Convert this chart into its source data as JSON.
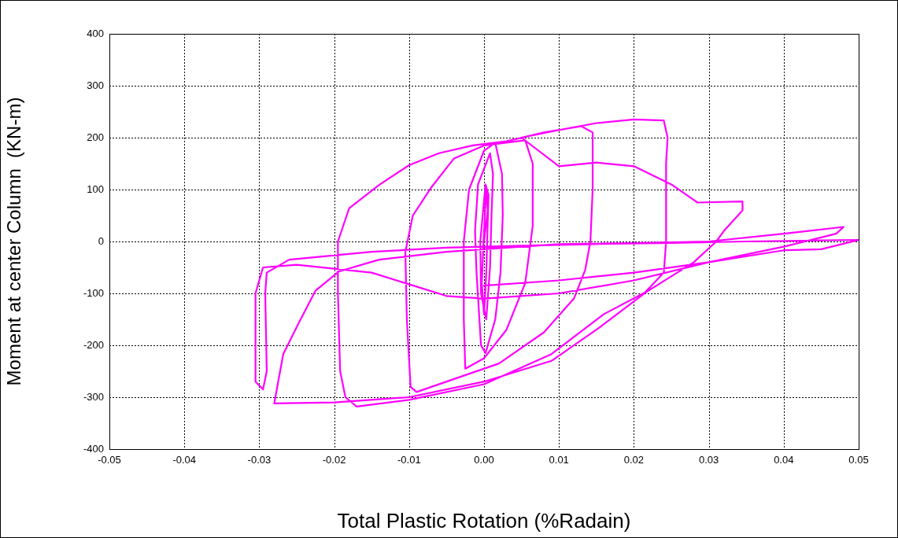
{
  "chart_data": {
    "type": "line",
    "xlabel": "Total Plastic Rotation (%Radain)",
    "ylabel": "Moment at center Column  (KN-m)",
    "xlim": [
      -0.05,
      0.05
    ],
    "xticks": [
      -0.05,
      -0.04,
      -0.03,
      -0.02,
      -0.01,
      {
        "value": 0,
        "label": "0.00"
      },
      0.01,
      0.02,
      0.03,
      0.04,
      0.05
    ],
    "ylim": [
      -400,
      400
    ],
    "yticks": [
      -400,
      -300,
      -200,
      -100,
      0,
      100,
      200,
      300,
      400
    ],
    "grid": true,
    "series": [
      {
        "color": "#ff00ff",
        "x": [
          0,
          0.0005,
          0.0003,
          0,
          -0.0003,
          0,
          0.0003,
          0.0006,
          0.0002,
          -0.0005,
          -0.0004,
          0.0003,
          0.0008,
          0.001,
          0.0012,
          0.0008,
          -0.0008,
          -0.0012,
          -0.001,
          -0.0004,
          0.0002,
          0.0015,
          0.0022,
          0.0025,
          0.0024,
          0.0015,
          0,
          -0.002,
          -0.0027,
          -0.0027,
          -0.0025,
          0,
          0.003,
          0.0055,
          0.0065,
          0.0065,
          0.0055,
          0,
          -0.004,
          -0.007,
          -0.0095,
          -0.0105,
          -0.0103,
          -0.0098,
          -0.009,
          -0.004,
          0.002,
          0.008,
          0.012,
          0.0135,
          0.0142,
          0.0145,
          0.0145,
          0.013,
          0.008,
          0.003,
          -0.0015,
          -0.006,
          -0.01,
          -0.014,
          -0.018,
          -0.0195,
          -0.0195,
          -0.0192,
          -0.0185,
          -0.017,
          -0.01,
          0,
          0.009,
          0.016,
          0.0215,
          0.024,
          0.0243,
          0.0243,
          0.0245,
          0.024,
          0.02,
          0.015,
          0.009,
          0.005,
          0.01,
          0.015,
          0.02,
          0.025,
          0.0285,
          0.0345,
          0.0345,
          0.032,
          0.031,
          0.028,
          0.0216,
          0.015,
          0.009,
          0,
          -0.01,
          -0.02,
          -0.028,
          -0.0268,
          -0.0247,
          -0.0225,
          -0.0194,
          -0.014,
          -0.005,
          0.01,
          0.02,
          0.03,
          0.04,
          0.048,
          0.047,
          0.04,
          0.03,
          0.02,
          0.01,
          0,
          -0.005,
          -0.015,
          -0.025,
          -0.0295,
          -0.0305,
          -0.0305,
          -0.0295,
          -0.029,
          -0.0292,
          -0.029,
          -0.026,
          -0.015,
          -0.005,
          0.005,
          0.015,
          0.025,
          0.035,
          0.045,
          0.05,
          0.045,
          0.04,
          0.03,
          0.02,
          0.01,
          0
        ],
        "values": [
          0,
          60,
          100,
          20,
          -80,
          -140,
          -60,
          90,
          110,
          0,
          -100,
          -150,
          -50,
          50,
          130,
          170,
          110,
          20,
          -60,
          -200,
          -215,
          -150,
          -60,
          50,
          130,
          190,
          175,
          100,
          0,
          -150,
          -245,
          -225,
          -170,
          -80,
          30,
          150,
          195,
          185,
          160,
          105,
          50,
          -20,
          -150,
          -280,
          -290,
          -265,
          -235,
          -175,
          -110,
          -55,
          0,
          100,
          210,
          222,
          210,
          193,
          185,
          170,
          147,
          109,
          64,
          0,
          -100,
          -250,
          -300,
          -318,
          -305,
          -275,
          -217,
          -140,
          -98,
          -60,
          0,
          150,
          200,
          233,
          235,
          228,
          212,
          200,
          145,
          152,
          145,
          110,
          75,
          77,
          60,
          20,
          0,
          -40,
          -98,
          -170,
          -230,
          -270,
          -300,
          -310,
          -312,
          -217,
          -156,
          -95,
          -58,
          -35,
          -20,
          -5,
          -3,
          0,
          15,
          28,
          15,
          -10,
          -40,
          -75,
          -100,
          -110,
          -105,
          -60,
          -45,
          -50,
          -100,
          -270,
          -285,
          -250,
          -100,
          -60,
          -35,
          -20,
          -12,
          -8,
          -5,
          -3,
          0,
          2,
          3,
          -15,
          -17,
          -40,
          -60,
          -75,
          -85
        ]
      }
    ]
  }
}
